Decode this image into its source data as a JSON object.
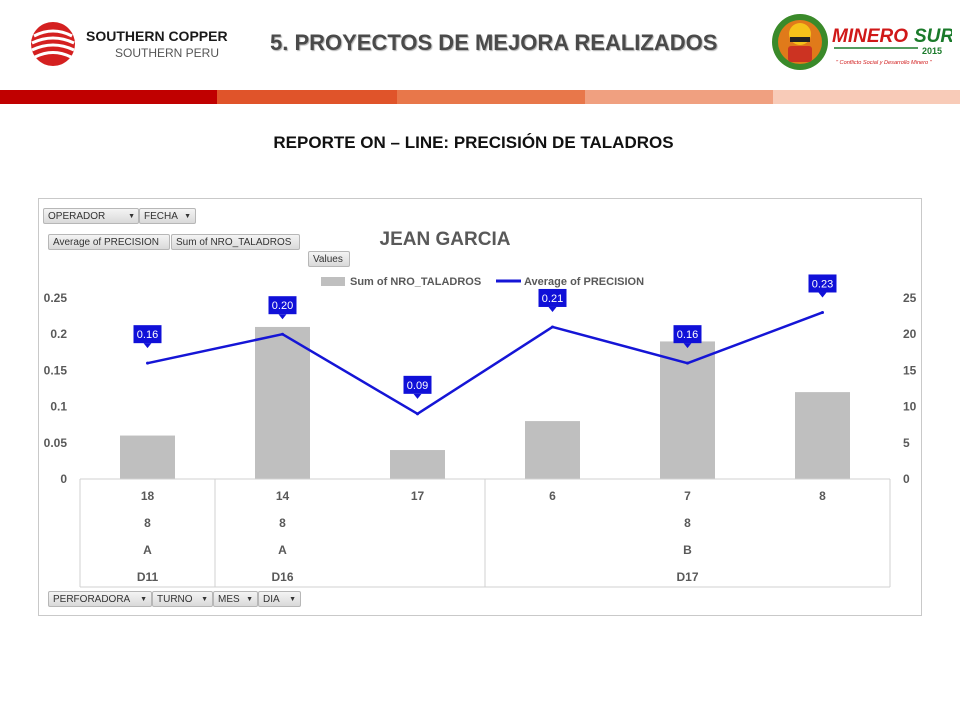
{
  "header": {
    "company_name": "SOUTHERN COPPER",
    "company_sub": "SOUTHERN PERU",
    "slide_title": "5. PROYECTOS DE MEJORA REALIZADOS",
    "right_logo": {
      "brand_left": "MINERO",
      "brand_right": "SUR",
      "year": "2015",
      "tagline": "\" Conflicto Social y Desarrollo Minero \""
    }
  },
  "report_title": "REPORTE ON – LINE: PRECISIÓN DE TALADROS",
  "pivot": {
    "filter_buttons": [
      "OPERADOR",
      "FECHA"
    ],
    "value_buttons": [
      "Average of PRECISION",
      "Sum of NRO_TALADROS"
    ],
    "values_button": "Values",
    "row_buttons": [
      "PERFORADORA",
      "TURNO",
      "MES",
      "DIA"
    ]
  },
  "colors": {
    "stripe": [
      "#c00000",
      "#e0542a",
      "#e8774a",
      "#f0a080",
      "#f8cbb8"
    ],
    "bar": "#bfbfbf",
    "line": "#1515d6",
    "label_bg": "#1010d8"
  },
  "chart_data": {
    "type": "bar",
    "title": "JEAN GARCIA",
    "legend": [
      "Sum of NRO_TALADROS",
      "Average of PRECISION"
    ],
    "legend_position": "top",
    "left_axis": {
      "ylim": [
        0,
        0.25
      ],
      "ticks": [
        "0.25",
        "0.2",
        "0.15",
        "0.1",
        "0.05",
        "0"
      ]
    },
    "right_axis": {
      "ylim": [
        0,
        25
      ],
      "ticks": [
        "25",
        "20",
        "15",
        "10",
        "5",
        "0"
      ]
    },
    "categories": [
      "18",
      "14",
      "17",
      "6",
      "7",
      "8"
    ],
    "series": [
      {
        "name": "Sum of NRO_TALADROS",
        "type": "bar",
        "axis": "right",
        "values": [
          6,
          21,
          4,
          8,
          19,
          12
        ]
      },
      {
        "name": "Average of PRECISION",
        "type": "line",
        "axis": "left",
        "values": [
          0.16,
          0.2,
          0.09,
          0.21,
          0.16,
          0.23
        ],
        "labels": [
          "0.16",
          "0.20",
          "0.09",
          "0.21",
          "0.16",
          "0.23"
        ]
      }
    ],
    "category_groups": [
      {
        "mes": "8",
        "turno": "A",
        "perforadora": "D11",
        "span": 1
      },
      {
        "mes": "8",
        "turno": "A",
        "perforadora": "D16",
        "span": 2
      },
      {
        "mes": "8",
        "turno": "B",
        "perforadora": "D17",
        "span": 3
      }
    ]
  }
}
